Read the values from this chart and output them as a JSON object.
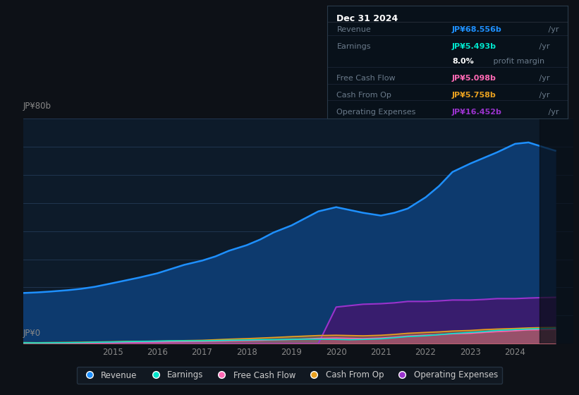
{
  "bg_color": "#0d1117",
  "plot_bg_color": "#0d1b2a",
  "grid_color": "#253d5a",
  "ylabel_top": "JP¥80b",
  "ylabel_bottom": "JP¥0",
  "years": [
    2013.0,
    2013.3,
    2013.6,
    2014.0,
    2014.3,
    2014.6,
    2015.0,
    2015.3,
    2015.6,
    2016.0,
    2016.3,
    2016.6,
    2017.0,
    2017.3,
    2017.6,
    2018.0,
    2018.3,
    2018.6,
    2019.0,
    2019.3,
    2019.6,
    2020.0,
    2020.3,
    2020.6,
    2021.0,
    2021.3,
    2021.6,
    2022.0,
    2022.3,
    2022.6,
    2023.0,
    2023.3,
    2023.6,
    2024.0,
    2024.3,
    2024.6,
    2024.9
  ],
  "revenue": [
    18,
    18.2,
    18.5,
    19,
    19.5,
    20.2,
    21.5,
    22.5,
    23.5,
    25,
    26.5,
    28,
    29.5,
    31,
    33,
    35,
    37,
    39.5,
    42,
    44.5,
    47,
    48.5,
    47.5,
    46.5,
    45.5,
    46.5,
    48,
    52,
    56,
    61,
    64,
    66,
    68,
    71,
    71.5,
    70,
    68.556
  ],
  "earnings": [
    0.3,
    0.25,
    0.3,
    0.35,
    0.4,
    0.5,
    0.6,
    0.7,
    0.8,
    0.9,
    1.0,
    1.0,
    1.0,
    1.1,
    1.2,
    1.3,
    1.4,
    1.4,
    1.5,
    1.6,
    1.6,
    1.5,
    1.4,
    1.5,
    1.7,
    2.1,
    2.5,
    2.8,
    3.2,
    3.6,
    4.0,
    4.3,
    4.7,
    5.0,
    5.2,
    5.35,
    5.493
  ],
  "free_cash_flow": [
    0.2,
    0.15,
    0.2,
    0.25,
    0.3,
    0.35,
    0.4,
    0.5,
    0.55,
    0.6,
    0.7,
    0.75,
    0.8,
    0.9,
    1.0,
    1.1,
    1.2,
    1.35,
    1.5,
    1.7,
    1.9,
    2.0,
    1.9,
    1.8,
    2.0,
    2.3,
    2.7,
    3.0,
    3.2,
    3.5,
    3.7,
    4.0,
    4.3,
    4.6,
    4.9,
    5.0,
    5.098
  ],
  "cash_from_op": [
    0.4,
    0.35,
    0.4,
    0.45,
    0.5,
    0.6,
    0.7,
    0.8,
    0.85,
    0.9,
    1.0,
    1.1,
    1.2,
    1.4,
    1.6,
    1.8,
    2.0,
    2.2,
    2.5,
    2.7,
    2.9,
    3.0,
    2.9,
    2.8,
    3.0,
    3.3,
    3.7,
    4.0,
    4.2,
    4.5,
    4.7,
    5.0,
    5.2,
    5.4,
    5.6,
    5.7,
    5.758
  ],
  "operating_expenses": [
    0,
    0,
    0,
    0,
    0,
    0,
    0,
    0,
    0,
    0,
    0,
    0,
    0,
    0,
    0,
    0,
    0,
    0,
    0,
    0,
    0,
    13.0,
    13.5,
    14.0,
    14.2,
    14.5,
    15.0,
    15.0,
    15.2,
    15.5,
    15.5,
    15.7,
    16.0,
    16.0,
    16.2,
    16.35,
    16.452
  ],
  "revenue_color": "#1e90ff",
  "earnings_color": "#00e5cc",
  "free_cash_flow_color": "#ff69b4",
  "cash_from_op_color": "#e8a020",
  "operating_expenses_color": "#9933cc",
  "revenue_fill": "#0d3a6e",
  "opex_fill": "#3d1a6e",
  "xlim": [
    2013.0,
    2025.3
  ],
  "ylim": [
    0,
    80
  ],
  "xticks": [
    2015,
    2016,
    2017,
    2018,
    2019,
    2020,
    2021,
    2022,
    2023,
    2024
  ],
  "dark_region_start": 2024.55,
  "info_box": {
    "title": "Dec 31 2024",
    "rows": [
      {
        "label": "Revenue",
        "value": "JP¥68.556b",
        "suffix": " /yr",
        "value_color": "#1e90ff"
      },
      {
        "label": "Earnings",
        "value": "JP¥5.493b",
        "suffix": " /yr",
        "value_color": "#00e5cc"
      },
      {
        "label": "",
        "value": "8.0%",
        "suffix": " profit margin",
        "value_color": "#ffffff"
      },
      {
        "label": "Free Cash Flow",
        "value": "JP¥5.098b",
        "suffix": " /yr",
        "value_color": "#ff69b4"
      },
      {
        "label": "Cash From Op",
        "value": "JP¥5.758b",
        "suffix": " /yr",
        "value_color": "#e8a020"
      },
      {
        "label": "Operating Expenses",
        "value": "JP¥16.452b",
        "suffix": " /yr",
        "value_color": "#9933cc"
      }
    ]
  },
  "legend": [
    {
      "label": "Revenue",
      "color": "#1e90ff"
    },
    {
      "label": "Earnings",
      "color": "#00e5cc"
    },
    {
      "label": "Free Cash Flow",
      "color": "#ff69b4"
    },
    {
      "label": "Cash From Op",
      "color": "#e8a020"
    },
    {
      "label": "Operating Expenses",
      "color": "#9933cc"
    }
  ]
}
